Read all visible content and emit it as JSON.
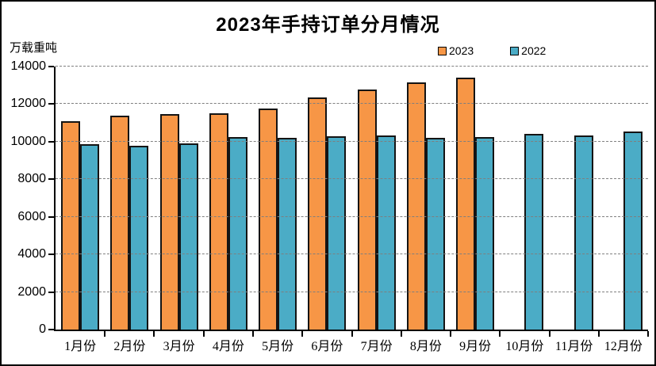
{
  "chart_data": {
    "type": "bar",
    "title": "2023年手持订单分月情况",
    "ylabel": "万载重吨",
    "xlabel": "",
    "categories": [
      "1月份",
      "2月份",
      "3月份",
      "4月份",
      "5月份",
      "6月份",
      "7月份",
      "8月份",
      "9月份",
      "10月份",
      "11月份",
      "12月份"
    ],
    "series": [
      {
        "name": "2023",
        "color": "#F79646",
        "values": [
          11109,
          11367,
          11452,
          11522,
          11759,
          12377,
          12790,
          13155,
          13393,
          null,
          null,
          null
        ]
      },
      {
        "name": "2022",
        "color": "#4BACC6",
        "values": [
          9858,
          9798,
          9891,
          10247,
          10190,
          10274,
          10332,
          10206,
          10261,
          10434,
          10337,
          10557
        ]
      }
    ],
    "ylim": [
      0,
      14000
    ],
    "ytick_step": 2000,
    "yticks": [
      0,
      2000,
      4000,
      6000,
      8000,
      10000,
      12000,
      14000
    ],
    "grid": "horizontal-dashed",
    "gridline_color": "#7f7f7f",
    "bar_border_color": "#141414",
    "legend_position": "top-right",
    "frame_border_color": "#000000",
    "background_color": "#ffffff"
  }
}
